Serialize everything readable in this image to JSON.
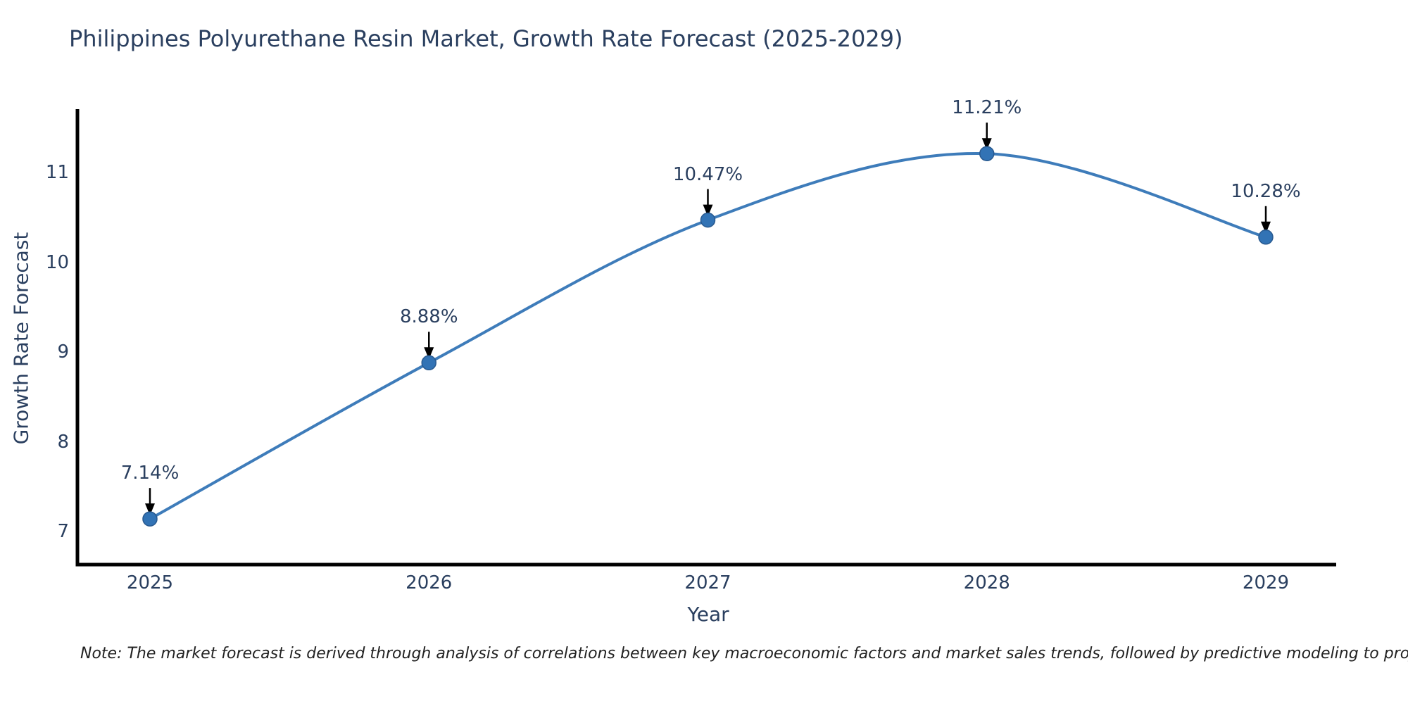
{
  "chart_data": {
    "type": "line",
    "title": "Philippines Polyurethane Resin Market, Growth Rate Forecast (2025-2029)",
    "xlabel": "Year",
    "ylabel": "Growth Rate Forecast",
    "categories": [
      "2025",
      "2026",
      "2027",
      "2028",
      "2029"
    ],
    "values": [
      7.14,
      8.88,
      10.47,
      11.21,
      10.28
    ],
    "point_labels": [
      "7.14%",
      "8.88%",
      "10.47%",
      "11.21%",
      "10.28%"
    ],
    "yticks": [
      "7",
      "8",
      "9",
      "10",
      "11"
    ],
    "ytick_values": [
      7,
      8,
      9,
      10,
      11
    ],
    "ylim": [
      6.63,
      11.72
    ],
    "grid": false,
    "legend": "none",
    "line_shape": "spline",
    "annotations_have_arrows": true,
    "note": "Note: The market forecast is derived through analysis of correlations between key macroeconomic factors and market sales trends, followed by predictive modeling to project future sales",
    "colors": {
      "line": "#3e7cba",
      "marker": "#3273b5",
      "marker_edge": "#28598f",
      "axis_line": "#000000",
      "text": "#2a3f5f",
      "annotation_text": "#2a3f5f",
      "arrow": "#000000",
      "note_text": "#222222",
      "background": "#ffffff"
    }
  }
}
